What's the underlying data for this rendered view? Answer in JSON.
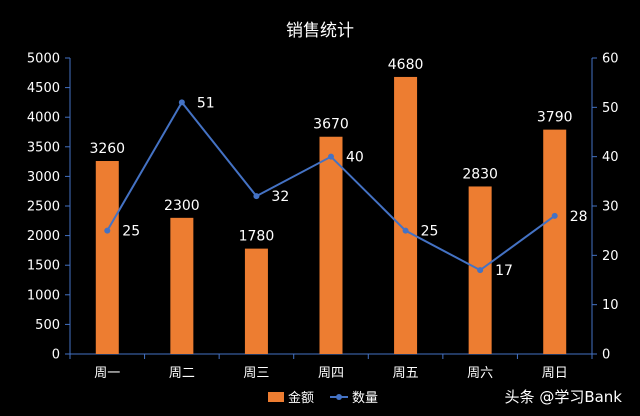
{
  "chart_data": {
    "type": "bar",
    "title": "销售统计",
    "categories": [
      "周一",
      "周二",
      "周三",
      "周四",
      "周五",
      "周六",
      "周日"
    ],
    "series": [
      {
        "name": "金额",
        "type": "bar",
        "axis": "left",
        "values": [
          3260,
          2300,
          1780,
          3670,
          4680,
          2830,
          3790
        ]
      },
      {
        "name": "数量",
        "type": "line",
        "axis": "right",
        "values": [
          25,
          51,
          32,
          40,
          25,
          17,
          28
        ]
      }
    ],
    "y_left": {
      "min": 0,
      "max": 5000,
      "ticks": [
        0,
        500,
        1000,
        1500,
        2000,
        2500,
        3000,
        3500,
        4000,
        4500,
        5000
      ]
    },
    "y_right": {
      "min": 0,
      "max": 60,
      "ticks": [
        0,
        10,
        20,
        30,
        40,
        50,
        60
      ]
    },
    "legend_position": "bottom",
    "grid": false
  },
  "colors": {
    "bar": "#ED7D31",
    "line": "#4472C4",
    "axis": "#4472C4",
    "text": "#FFFFFF",
    "background": "#000000"
  },
  "watermark": "头条 @学习Bank"
}
